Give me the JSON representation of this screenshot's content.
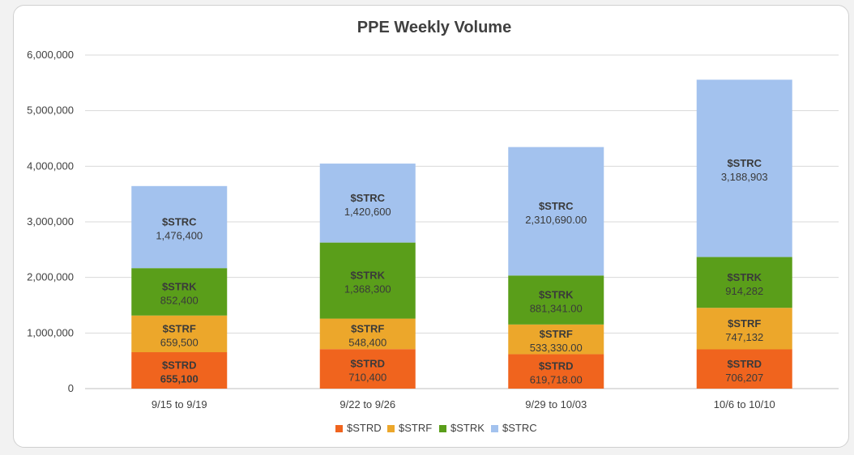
{
  "chart_data": {
    "type": "stacked-bar",
    "title": "PPE Weekly Volume",
    "xlabel": "",
    "ylabel": "",
    "ylim": [
      0,
      6000000
    ],
    "yticks": [
      0,
      1000000,
      2000000,
      3000000,
      4000000,
      5000000,
      6000000
    ],
    "ytick_labels": [
      "0",
      "1,000,000",
      "2,000,000",
      "3,000,000",
      "4,000,000",
      "5,000,000",
      "6,000,000"
    ],
    "grid": true,
    "legend_position": "bottom",
    "categories": [
      "9/15 to 9/19",
      "9/22 to 9/26",
      "9/29 to 10/03",
      "10/6 to 10/10"
    ],
    "series": [
      {
        "name": "$STRD",
        "color": "#F0641E",
        "values": [
          655100,
          710400,
          619718,
          706207
        ],
        "labels": [
          "655,100",
          "710,400",
          "619,718.00",
          "706,207"
        ],
        "bold_labels": [
          true,
          false,
          false,
          false
        ]
      },
      {
        "name": "$STRF",
        "color": "#ECA72B",
        "values": [
          659500,
          548400,
          533330,
          747132
        ],
        "labels": [
          "659,500",
          "548,400",
          "533,330.00",
          "747,132"
        ],
        "bold_labels": [
          false,
          false,
          false,
          false
        ]
      },
      {
        "name": "$STRK",
        "color": "#5A9E1A",
        "values": [
          852400,
          1368300,
          881341,
          914282
        ],
        "labels": [
          "852,400",
          "1,368,300",
          "881,341.00",
          "914,282"
        ],
        "bold_labels": [
          false,
          false,
          false,
          false
        ]
      },
      {
        "name": "$STRC",
        "color": "#A3C2EE",
        "values": [
          1476400,
          1420600,
          2310690,
          3188903
        ],
        "labels": [
          "1,476,400",
          "1,420,600",
          "2,310,690.00",
          "3,188,903"
        ],
        "bold_labels": [
          false,
          false,
          false,
          false
        ]
      }
    ]
  }
}
